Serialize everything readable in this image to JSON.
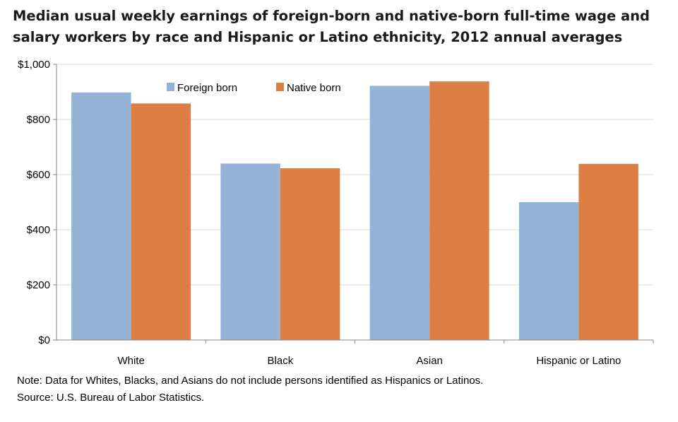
{
  "chart_data": {
    "type": "bar",
    "title": "Median usual weekly earnings of foreign-born and native-born full-time wage and salary workers by race and Hispanic or Latino ethnicity, 2012 annual averages",
    "categories": [
      "White",
      "Black",
      "Asian",
      "Hispanic or Latino"
    ],
    "series": [
      {
        "name": "Foreign born",
        "color": "#95b3d7",
        "values": [
          898,
          640,
          922,
          500
        ]
      },
      {
        "name": "Native born",
        "color": "#dd7f45",
        "values": [
          858,
          623,
          938,
          639
        ]
      }
    ],
    "ylim": [
      0,
      1000
    ],
    "yticks": [
      {
        "value": 0,
        "label": "$0"
      },
      {
        "value": 200,
        "label": "$200"
      },
      {
        "value": 400,
        "label": "$400"
      },
      {
        "value": 600,
        "label": "$600"
      },
      {
        "value": 800,
        "label": "$800"
      },
      {
        "value": 1000,
        "label": "$1,000"
      }
    ],
    "grid": true,
    "legend": "top-center"
  },
  "notes": {
    "note": "Note: Data for Whites, Blacks, and Asians do not include persons  identified as Hispanics or Latinos.",
    "source": "Source: U.S. Bureau of Labor Statistics."
  }
}
